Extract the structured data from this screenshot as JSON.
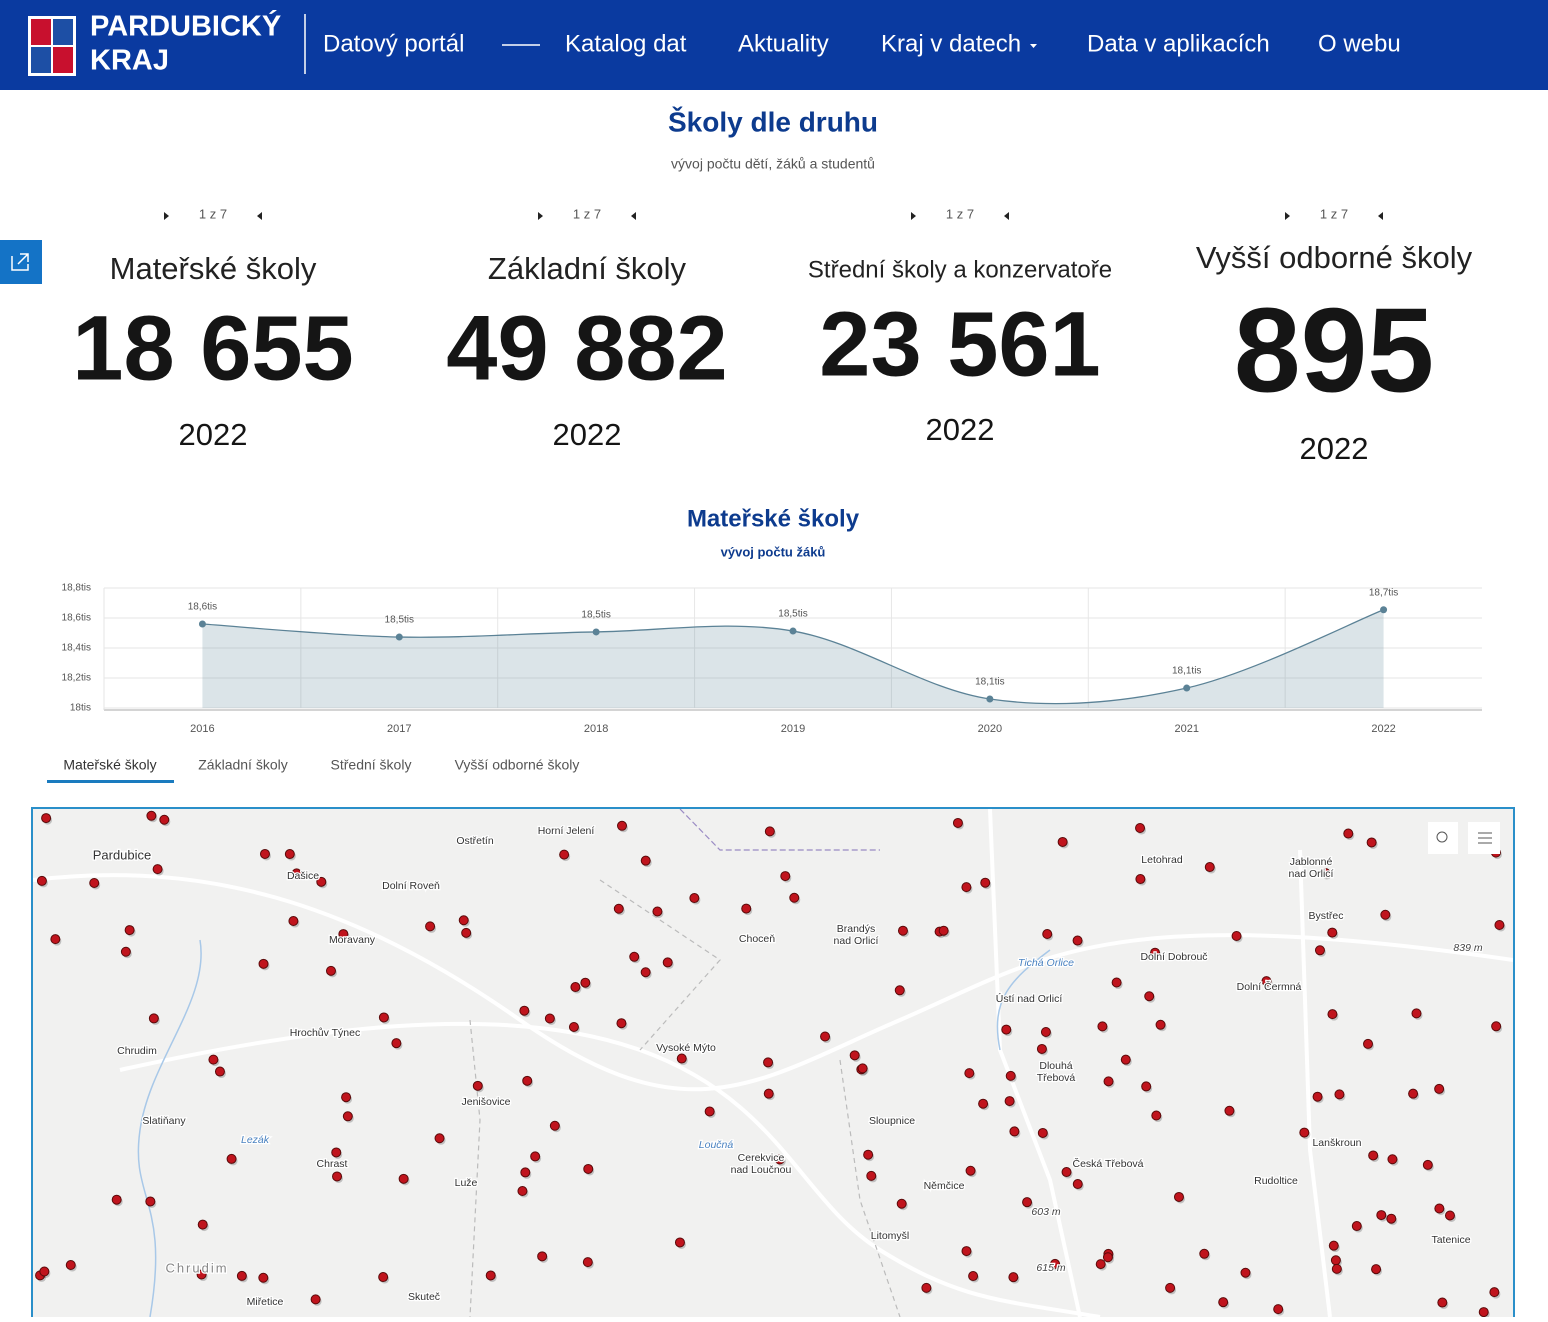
{
  "header": {
    "logo": [
      "PARDUBICKÝ",
      "KRAJ"
    ],
    "nav": [
      "Datový portál",
      "Katalog dat",
      "Aktuality",
      "Kraj v datech",
      "Data v aplikacích",
      "O webu"
    ]
  },
  "section": {
    "title": "Školy dle druhu",
    "subtitle": "vývoj počtu dětí, žáků a studentů"
  },
  "indicators": [
    {
      "pager": "1 z 7",
      "title": "Mateřské školy",
      "value": "18 655",
      "year": "2022"
    },
    {
      "pager": "1 z 7",
      "title": "Základní školy",
      "value": "49 882",
      "year": "2022"
    },
    {
      "pager": "1 z 7",
      "title": "Střední školy a konzervatoře",
      "value": "23 561",
      "year": "2022"
    },
    {
      "pager": "1 z 7",
      "title": "Vyšší odborné školy",
      "value": "895",
      "year": "2022"
    }
  ],
  "chart_data": {
    "type": "area",
    "title": "Mateřské školy",
    "subtitle": "vývoj počtu žáků",
    "categories": [
      "2016",
      "2017",
      "2018",
      "2019",
      "2020",
      "2021",
      "2022"
    ],
    "values": [
      18560,
      18473,
      18507,
      18513,
      18060,
      18133,
      18655
    ],
    "value_labels": [
      "18,6tis",
      "18,5tis",
      "18,5tis",
      "18,5tis",
      "18,1tis",
      "18,1tis",
      "18,7tis"
    ],
    "color": "#5b8296",
    "ylim": [
      18000,
      18800
    ],
    "yticks": [
      {
        "value": 18000,
        "label": "18tis"
      },
      {
        "value": 18200,
        "label": "18,2tis"
      },
      {
        "value": 18400,
        "label": "18,4tis"
      },
      {
        "value": 18600,
        "label": "18,6tis"
      },
      {
        "value": 18800,
        "label": "18,8tis"
      }
    ],
    "grid": true
  },
  "tabs": [
    "Mateřské školy",
    "Základní školy",
    "Střední školy",
    "Vyšší odborné školy"
  ],
  "map": {
    "labels": [
      "Ostřetín",
      "Horní Jelení",
      "Pardubice",
      "Dašice",
      "Dolní Roveň",
      "Moravany",
      "Choceň",
      "Brandýs",
      "nad Orlicí",
      "Letohrad",
      "Jablonné",
      "nad Orlicí",
      "Bystřec",
      "Dolní Dobrouč",
      "Dolní Čermná",
      "Ústí nad Orlicí",
      "Hrochův Týnec",
      "Chrudim",
      "Vysoké Mýto",
      "Dlouhá",
      "Třebová",
      "Jenišovice",
      "Slatiňany",
      "Sloupnice",
      "Lanškroun",
      "Chrast",
      "Cerekvice",
      "nad Loučnou",
      "Česká Třebová",
      "Rudoltice",
      "Luže",
      "Němčice",
      "Litomyšl",
      "Tatenice",
      "Miřetice",
      "Skuteč",
      "Chrudim",
      "839 m",
      "603 m",
      "615 m",
      "Tichá Orlice",
      "Loučná",
      "Lezák"
    ]
  }
}
